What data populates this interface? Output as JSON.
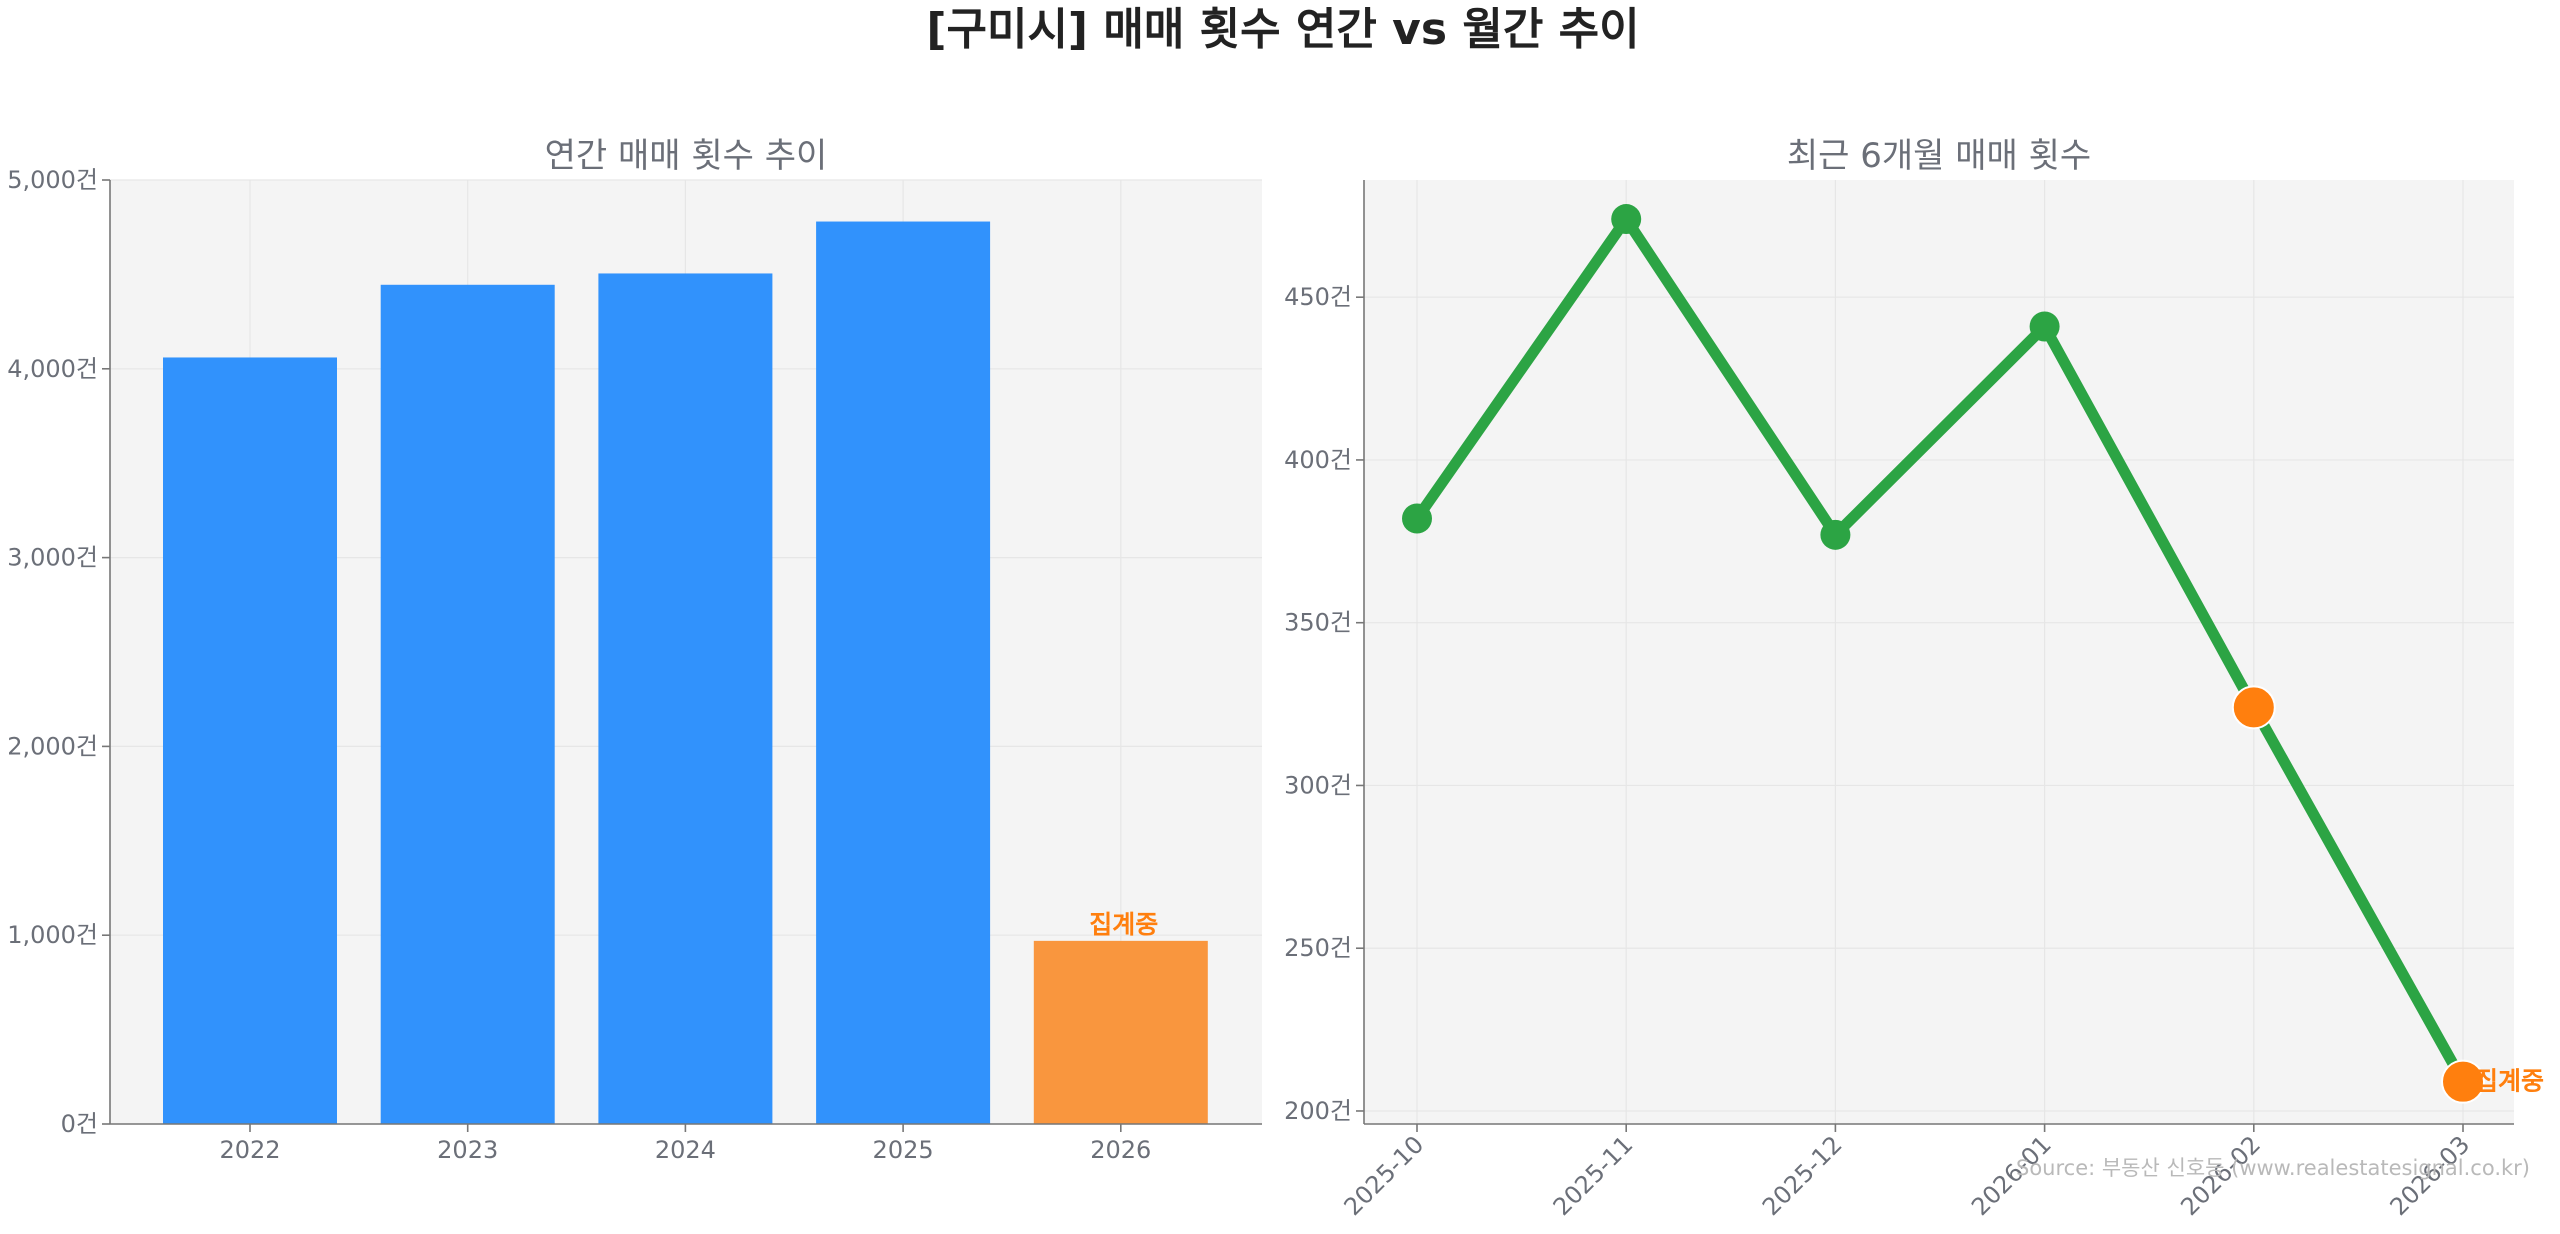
{
  "title": "[구미시] 매매 횟수 연간 vs 월간 추이",
  "source": "Source: 부동산 신호등 (www.realestatesignal.co.kr)",
  "chart_data": [
    {
      "type": "bar",
      "title": "연간 매매 횟수 추이",
      "xlabel": "",
      "ylabel": "",
      "categories": [
        "2022",
        "2023",
        "2024",
        "2025",
        "2026"
      ],
      "values": [
        4060,
        4445,
        4505,
        4780,
        970
      ],
      "ylim": [
        0,
        5000
      ],
      "yticks": [
        0,
        1000,
        2000,
        3000,
        4000,
        5000
      ],
      "ytick_labels": [
        "0건",
        "1,000건",
        "2,000건",
        "3,000건",
        "4,000건",
        "5,000건"
      ],
      "bar_colors": [
        "#3192fc",
        "#3192fc",
        "#3192fc",
        "#3192fc",
        "#f9963e"
      ],
      "annotations": [
        {
          "category": "2026",
          "text": "집계중",
          "color": "#ff7f0e"
        }
      ],
      "grid": true
    },
    {
      "type": "line",
      "title": "최근 6개월 매매 횟수",
      "xlabel": "",
      "ylabel": "",
      "x": [
        "2025-10",
        "2025-11",
        "2025-12",
        "2026-01",
        "2026-02",
        "2026-03"
      ],
      "values": [
        382,
        474,
        377,
        441,
        324,
        209
      ],
      "ylim": [
        196,
        486
      ],
      "yticks": [
        200,
        250,
        300,
        350,
        400,
        450
      ],
      "ytick_labels": [
        "200건",
        "250건",
        "300건",
        "350건",
        "400건",
        "450건"
      ],
      "line_color": "#2ca444",
      "highlight_points": [
        "2026-02",
        "2026-03"
      ],
      "highlight_color": "#ff7f0e",
      "annotations": [
        {
          "x": "2026-03",
          "text": "집계중",
          "color": "#ff7f0e"
        }
      ],
      "grid": true
    }
  ]
}
